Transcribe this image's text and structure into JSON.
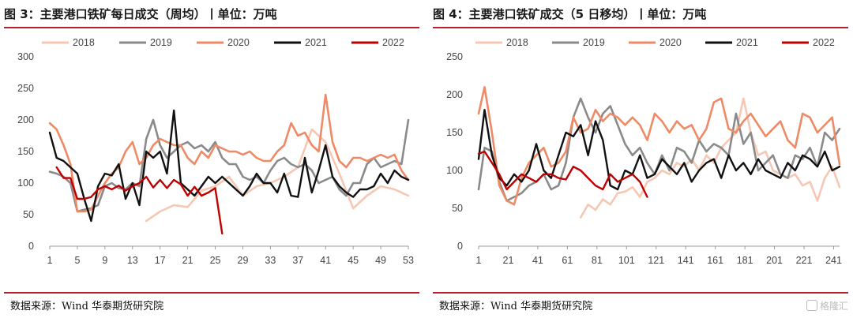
{
  "charts": [
    {
      "title": "图 3：主要港口铁矿每日成交（周均）丨单位：万吨",
      "source": "数据来源：Wind 华泰期货研究院"
    },
    {
      "title": "图 4：主要港口铁矿成交（5 日移均）丨单位：万吨",
      "source": "数据来源：Wind 华泰期货研究院"
    }
  ],
  "watermark": "格隆汇",
  "colors": {
    "accent_rule": "#b5222a",
    "2018": "#f6c7b2",
    "2019": "#8a8a8a",
    "2020": "#ef8a66",
    "2021": "#111111",
    "2022": "#c00000"
  },
  "chart_data": [
    {
      "type": "line",
      "title": "图 3：主要港口铁矿每日成交（周均）丨单位：万吨",
      "xlabel": "",
      "ylabel": "",
      "x_ticks": [
        1,
        5,
        9,
        13,
        17,
        21,
        25,
        29,
        33,
        37,
        41,
        45,
        49,
        53
      ],
      "xlim": [
        1,
        53
      ],
      "y_ticks": [
        0,
        50,
        100,
        150,
        200,
        250,
        300
      ],
      "ylim": [
        0,
        300
      ],
      "legend": "top",
      "series": [
        {
          "name": "2018",
          "color_key": "2018",
          "x": [
            15,
            17,
            19,
            21,
            23,
            25,
            27,
            29,
            31,
            33,
            35,
            37,
            39,
            41,
            43,
            45,
            47,
            49,
            51,
            53
          ],
          "y": [
            40,
            55,
            65,
            62,
            88,
            95,
            110,
            80,
            95,
            100,
            110,
            125,
            185,
            165,
            115,
            60,
            80,
            95,
            90,
            80
          ]
        },
        {
          "name": "2019",
          "color_key": "2019",
          "x": [
            1,
            2,
            3,
            4,
            5,
            6,
            7,
            8,
            9,
            10,
            11,
            12,
            13,
            14,
            15,
            16,
            17,
            18,
            19,
            20,
            21,
            22,
            23,
            24,
            25,
            26,
            27,
            28,
            29,
            30,
            31,
            32,
            33,
            34,
            35,
            36,
            37,
            38,
            39,
            40,
            41,
            42,
            43,
            44,
            45,
            46,
            47,
            48,
            49,
            50,
            51,
            52,
            53
          ],
          "y": [
            118,
            115,
            110,
            100,
            55,
            58,
            60,
            65,
            95,
            100,
            92,
            90,
            100,
            95,
            170,
            200,
            160,
            140,
            150,
            160,
            165,
            155,
            160,
            150,
            165,
            140,
            130,
            130,
            110,
            105,
            110,
            100,
            120,
            135,
            140,
            130,
            125,
            130,
            120,
            100,
            105,
            110,
            90,
            80,
            100,
            100,
            130,
            140,
            125,
            130,
            135,
            130,
            200
          ]
        },
        {
          "name": "2020",
          "color_key": "2020",
          "x": [
            1,
            2,
            3,
            4,
            5,
            6,
            7,
            8,
            9,
            10,
            11,
            12,
            13,
            14,
            15,
            16,
            17,
            18,
            19,
            20,
            21,
            22,
            23,
            24,
            25,
            26,
            27,
            28,
            29,
            30,
            31,
            32,
            33,
            34,
            35,
            36,
            37,
            38,
            39,
            40,
            41,
            42,
            43,
            44,
            45,
            46,
            47,
            48,
            49,
            50,
            51,
            52,
            53
          ],
          "y": [
            195,
            185,
            160,
            130,
            55,
            55,
            58,
            80,
            100,
            115,
            125,
            150,
            165,
            130,
            140,
            160,
            170,
            165,
            160,
            160,
            140,
            130,
            150,
            140,
            160,
            155,
            150,
            150,
            145,
            150,
            140,
            135,
            135,
            150,
            160,
            195,
            175,
            180,
            160,
            150,
            240,
            165,
            135,
            125,
            140,
            140,
            135,
            140,
            145,
            140,
            145,
            120,
            105
          ]
        },
        {
          "name": "2021",
          "color_key": "2021",
          "x": [
            1,
            2,
            3,
            4,
            5,
            6,
            7,
            8,
            9,
            10,
            11,
            12,
            13,
            14,
            15,
            16,
            17,
            18,
            19,
            20,
            21,
            22,
            23,
            24,
            25,
            26,
            27,
            28,
            29,
            30,
            31,
            32,
            33,
            34,
            35,
            36,
            37,
            38,
            39,
            40,
            41,
            42,
            43,
            44,
            45,
            46,
            47,
            48,
            49,
            50,
            51,
            52,
            53
          ],
          "y": [
            180,
            140,
            135,
            125,
            115,
            75,
            40,
            95,
            115,
            112,
            130,
            75,
            100,
            65,
            150,
            140,
            150,
            115,
            215,
            100,
            90,
            80,
            95,
            110,
            100,
            110,
            100,
            90,
            80,
            95,
            115,
            100,
            100,
            85,
            115,
            80,
            78,
            140,
            85,
            120,
            160,
            110,
            95,
            85,
            78,
            90,
            90,
            95,
            115,
            100,
            120,
            110,
            105
          ]
        },
        {
          "name": "2022",
          "color_key": "2022",
          "x": [
            2,
            3,
            4,
            5,
            6,
            7,
            8,
            9,
            10,
            11,
            12,
            13,
            14,
            15,
            16,
            17,
            18,
            19,
            20,
            21,
            22,
            23,
            24,
            25,
            26
          ],
          "y": [
            125,
            108,
            108,
            75,
            75,
            78,
            90,
            95,
            90,
            96,
            88,
            95,
            100,
            110,
            93,
            105,
            92,
            105,
            98,
            80,
            94,
            80,
            85,
            92,
            20
          ]
        }
      ]
    },
    {
      "type": "line",
      "title": "图 4：主要港口铁矿成交（5 日移均）丨单位：万吨",
      "xlabel": "",
      "ylabel": "",
      "x_ticks": [
        1,
        21,
        41,
        61,
        81,
        101,
        121,
        141,
        161,
        181,
        201,
        221,
        241
      ],
      "xlim": [
        1,
        245
      ],
      "y_ticks": [
        0,
        50,
        100,
        150,
        200,
        250
      ],
      "ylim": [
        0,
        250
      ],
      "legend": "top",
      "series": [
        {
          "name": "2018",
          "color_key": "2018",
          "x": [
            70,
            75,
            80,
            85,
            90,
            95,
            100,
            105,
            110,
            115,
            120,
            125,
            130,
            135,
            140,
            145,
            150,
            155,
            160,
            165,
            170,
            175,
            180,
            185,
            190,
            195,
            200,
            205,
            210,
            215,
            220,
            225,
            230,
            235,
            240,
            245
          ],
          "y": [
            38,
            55,
            48,
            62,
            55,
            70,
            72,
            78,
            65,
            85,
            90,
            100,
            95,
            110,
            105,
            115,
            100,
            120,
            110,
            130,
            140,
            150,
            195,
            150,
            120,
            125,
            100,
            95,
            90,
            95,
            80,
            85,
            60,
            90,
            105,
            78
          ]
        },
        {
          "name": "2019",
          "color_key": "2019",
          "x": [
            1,
            5,
            10,
            15,
            20,
            25,
            30,
            35,
            40,
            45,
            50,
            55,
            60,
            65,
            70,
            75,
            80,
            85,
            90,
            95,
            100,
            105,
            110,
            115,
            120,
            125,
            130,
            135,
            140,
            145,
            150,
            155,
            160,
            165,
            170,
            175,
            180,
            185,
            190,
            195,
            200,
            205,
            210,
            215,
            220,
            225,
            230,
            235,
            240,
            245
          ],
          "y": [
            75,
            130,
            125,
            85,
            60,
            65,
            70,
            80,
            85,
            95,
            75,
            80,
            110,
            170,
            195,
            170,
            150,
            175,
            185,
            160,
            135,
            120,
            130,
            110,
            95,
            120,
            100,
            130,
            125,
            110,
            140,
            125,
            135,
            130,
            120,
            175,
            135,
            150,
            100,
            110,
            120,
            95,
            90,
            120,
            115,
            130,
            105,
            150,
            140,
            155
          ]
        },
        {
          "name": "2020",
          "color_key": "2020",
          "x": [
            1,
            5,
            10,
            15,
            20,
            25,
            30,
            35,
            40,
            45,
            50,
            55,
            60,
            65,
            70,
            75,
            80,
            85,
            90,
            95,
            100,
            105,
            110,
            115,
            120,
            125,
            130,
            135,
            140,
            145,
            150,
            155,
            160,
            165,
            170,
            175,
            180,
            185,
            190,
            195,
            200,
            205,
            210,
            215,
            220,
            225,
            230,
            235,
            240,
            245
          ],
          "y": [
            175,
            210,
            150,
            80,
            60,
            55,
            90,
            110,
            120,
            130,
            105,
            110,
            125,
            170,
            150,
            155,
            180,
            165,
            175,
            170,
            160,
            170,
            160,
            140,
            175,
            165,
            150,
            165,
            155,
            160,
            140,
            155,
            190,
            195,
            155,
            150,
            165,
            175,
            160,
            145,
            155,
            165,
            140,
            130,
            175,
            170,
            150,
            160,
            170,
            108
          ]
        },
        {
          "name": "2021",
          "color_key": "2021",
          "x": [
            1,
            5,
            10,
            15,
            20,
            25,
            30,
            35,
            40,
            45,
            50,
            55,
            60,
            65,
            70,
            75,
            80,
            85,
            90,
            95,
            100,
            105,
            110,
            115,
            120,
            125,
            130,
            135,
            140,
            145,
            150,
            155,
            160,
            165,
            170,
            175,
            180,
            185,
            190,
            195,
            200,
            205,
            210,
            215,
            220,
            225,
            230,
            235,
            240,
            245
          ],
          "y": [
            115,
            180,
            120,
            90,
            80,
            95,
            85,
            100,
            135,
            100,
            90,
            120,
            150,
            145,
            160,
            120,
            165,
            140,
            80,
            75,
            100,
            95,
            120,
            90,
            95,
            115,
            105,
            95,
            110,
            85,
            100,
            110,
            115,
            90,
            120,
            100,
            110,
            95,
            115,
            100,
            95,
            90,
            110,
            100,
            120,
            115,
            105,
            125,
            100,
            105
          ]
        },
        {
          "name": "2022",
          "color_key": "2022",
          "x": [
            1,
            5,
            10,
            15,
            20,
            25,
            30,
            35,
            40,
            45,
            50,
            55,
            60,
            65,
            70,
            75,
            80,
            85,
            90,
            95,
            100,
            105,
            110,
            115
          ],
          "y": [
            122,
            125,
            110,
            95,
            75,
            85,
            95,
            90,
            85,
            95,
            95,
            90,
            88,
            105,
            100,
            90,
            80,
            75,
            95,
            85,
            90,
            95,
            85,
            65
          ]
        }
      ]
    }
  ]
}
